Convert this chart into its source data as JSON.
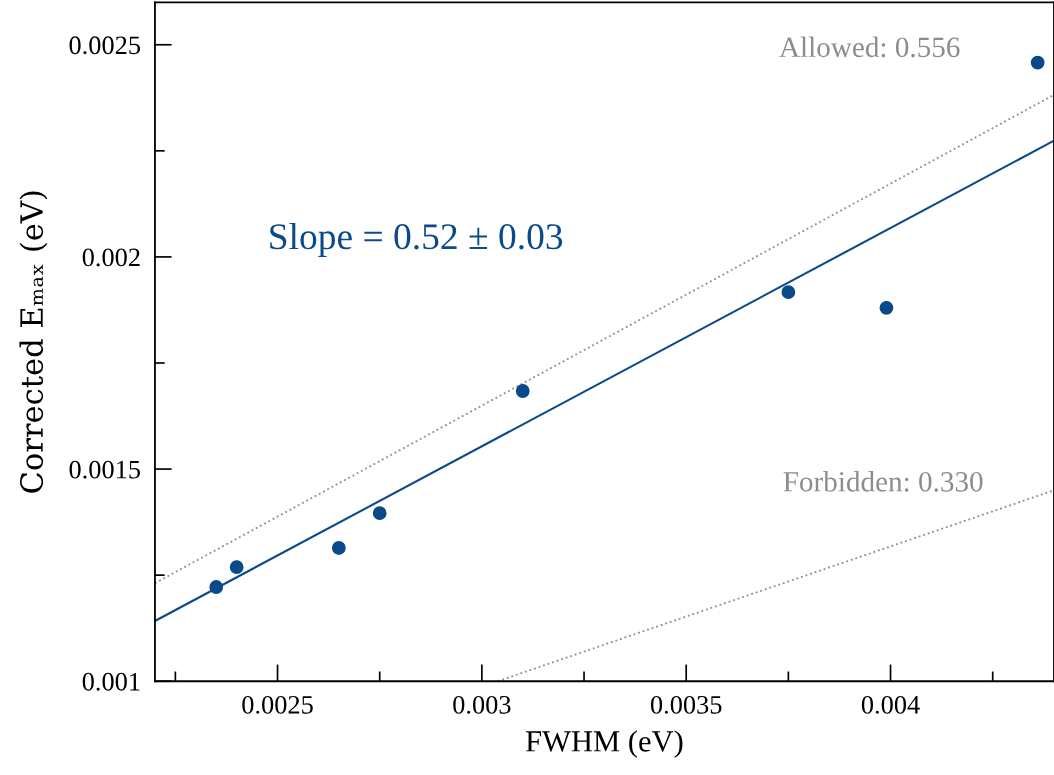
{
  "chart_data": {
    "type": "scatter",
    "xlabel": "FWHM (eV)",
    "ylabel": "Corrected Eₘₐₓ (eV)",
    "xlim": [
      0.0022,
      0.0044
    ],
    "ylim": [
      0.001,
      0.0026
    ],
    "xticks": [
      {
        "value": 0.00225,
        "label": null
      },
      0.0025,
      {
        "value": 0.00275,
        "label": null
      },
      0.003,
      {
        "value": 0.00325,
        "label": null
      },
      0.0035,
      {
        "value": 0.00375,
        "label": null
      },
      0.004,
      {
        "value": 0.00425,
        "label": null
      }
    ],
    "yticks": [
      0.001,
      {
        "value": 0.00125,
        "label": null
      },
      0.0015,
      {
        "value": 0.00175,
        "label": null
      },
      0.002,
      {
        "value": 0.00225,
        "label": null
      },
      0.0025
    ],
    "grid": false,
    "legend": false,
    "series": [
      {
        "type": "line",
        "color": "#8c8c8c",
        "line_style": "dotted",
        "x": [
          0.0022,
          0.0044
        ],
        "values": [
          0.001231,
          0.002382
        ]
      },
      {
        "type": "line",
        "color": "#8c8c8c",
        "line_style": "dotted",
        "x": [
          0.003039,
          0.0044
        ],
        "values": [
          0.001,
          0.00145
        ]
      },
      {
        "type": "line",
        "color": "#0b4a8a",
        "line_style": "solid",
        "x": [
          0.0022,
          0.0044
        ],
        "values": [
          0.001142,
          0.002274
        ]
      },
      {
        "color": "#0b4a8a",
        "marker": "circle",
        "x": [
          0.00235,
          0.0024,
          0.00265,
          0.00275,
          0.0031,
          0.00375,
          0.00399,
          0.00436
        ],
        "values": [
          0.001222,
          0.001269,
          0.001314,
          0.001396,
          0.001684,
          0.001917,
          0.00188,
          0.002458
        ]
      }
    ],
    "annotations": [
      "Allowed: 0.556",
      "Forbidden: 0.330",
      "Slope = 0.52 ± 0.03"
    ]
  }
}
